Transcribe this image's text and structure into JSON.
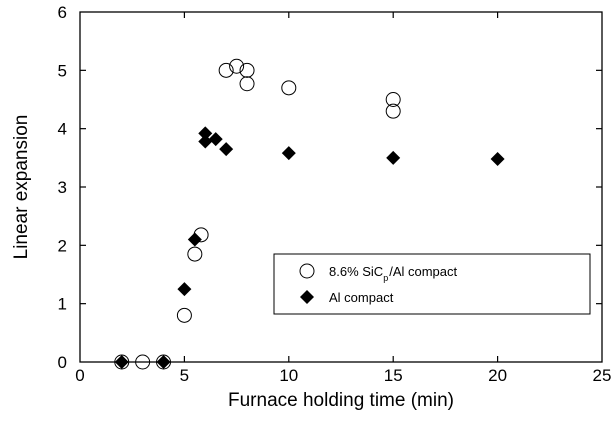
{
  "chart_data": {
    "type": "scatter",
    "xlabel": "Furnace holding time (min)",
    "ylabel": "Linear expansion",
    "xlim": [
      0,
      25
    ],
    "ylim": [
      0,
      6
    ],
    "xticks": [
      "0",
      "5",
      "10",
      "15",
      "20",
      "25"
    ],
    "yticks": [
      "0",
      "1",
      "2",
      "3",
      "4",
      "5",
      "6"
    ],
    "grid": false,
    "legend_position": "lower-right",
    "series": [
      {
        "name": "8.6% SiCp/Al compact",
        "name_main": "8.6% SiC",
        "name_sub": "p",
        "name_tail": "/Al compact",
        "marker": "open-circle",
        "color": "#000000",
        "x": [
          2,
          3,
          4,
          5,
          5.5,
          5.8,
          7,
          7.5,
          8,
          8,
          10,
          15,
          15
        ],
        "y": [
          0,
          0,
          0,
          0.8,
          1.85,
          2.18,
          5.0,
          5.07,
          5.0,
          4.77,
          4.7,
          4.5,
          4.3
        ]
      },
      {
        "name": "Al compact",
        "marker": "filled-diamond",
        "color": "#000000",
        "x": [
          2,
          4,
          5,
          5.5,
          6,
          6,
          6.5,
          7,
          10,
          15,
          20
        ],
        "y": [
          0,
          0,
          1.25,
          2.1,
          3.92,
          3.78,
          3.82,
          3.65,
          3.58,
          3.5,
          3.48
        ]
      }
    ]
  }
}
